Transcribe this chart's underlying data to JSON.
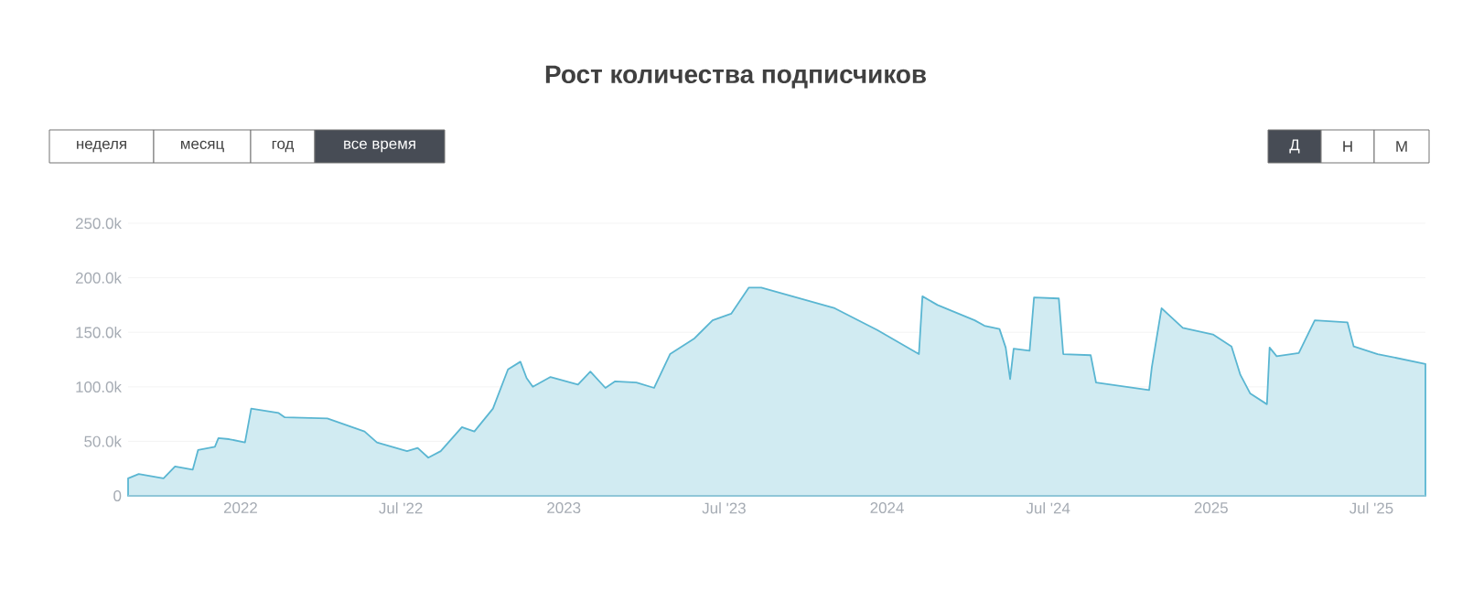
{
  "chart_data": {
    "type": "area",
    "title": "Рост количества подписчиков",
    "annotations": [
      "неделя",
      "месяц",
      "год",
      "все время",
      "Д",
      "Н",
      "М"
    ],
    "x": [
      "2021-08-27",
      "2021-09-08",
      "2021-10-06",
      "2021-10-19",
      "2021-11-08",
      "2021-11-14",
      "2021-12-03",
      "2021-12-07",
      "2021-12-19",
      "2022-01-06",
      "2022-01-13",
      "2022-02-13",
      "2022-02-20",
      "2022-04-09",
      "2022-05-21",
      "2022-06-04",
      "2022-07-08",
      "2022-07-20",
      "2022-08-01",
      "2022-08-15",
      "2022-09-08",
      "2022-09-22",
      "2022-10-13",
      "2022-10-30",
      "2022-11-13",
      "2022-11-20",
      "2022-11-27",
      "2022-12-17",
      "2023-01-17",
      "2023-01-31",
      "2023-02-17",
      "2023-02-28",
      "2023-03-24",
      "2023-04-13",
      "2023-05-01",
      "2023-05-28",
      "2023-06-18",
      "2023-07-09",
      "2023-07-29",
      "2023-08-12",
      "2023-11-03",
      "2023-12-21",
      "2024-02-06",
      "2024-02-10",
      "2024-02-27",
      "2024-04-09",
      "2024-04-20",
      "2024-05-07",
      "2024-05-14",
      "2024-05-19",
      "2024-05-23",
      "2024-06-10",
      "2024-06-15",
      "2024-07-13",
      "2024-07-18",
      "2024-08-18",
      "2024-08-24",
      "2024-10-23",
      "2024-10-26",
      "2024-11-06",
      "2024-11-30",
      "2025-01-03",
      "2025-01-24",
      "2025-02-03",
      "2025-02-14",
      "2025-03-05",
      "2025-03-08",
      "2025-03-16",
      "2025-04-10",
      "2025-04-28",
      "2025-06-04",
      "2025-06-11",
      "2025-07-08",
      "2025-08-31"
    ],
    "series": [
      {
        "color": "#5ab6d2",
        "values": [
          16000,
          20000,
          16000,
          27000,
          24000,
          42000,
          45000,
          53000,
          52000,
          49000,
          80000,
          76000,
          72000,
          71000,
          59000,
          49000,
          41000,
          44000,
          35000,
          41000,
          63000,
          59000,
          80000,
          116000,
          123000,
          108000,
          100000,
          109000,
          102000,
          114000,
          99000,
          105000,
          104000,
          99000,
          130000,
          144000,
          161000,
          167000,
          191000,
          191000,
          172000,
          152000,
          130000,
          183000,
          175000,
          161000,
          156000,
          153000,
          136000,
          107000,
          135000,
          133000,
          182000,
          181000,
          130000,
          129000,
          104000,
          97000,
          118000,
          172000,
          154000,
          148000,
          137000,
          111000,
          94000,
          84000,
          136000,
          128000,
          131000,
          161000,
          159000,
          137000,
          130000,
          121000
        ]
      }
    ],
    "xlim": [
      "2021-08-27",
      "2025-08-31"
    ],
    "xticks": [
      {
        "value": "2022-01-01",
        "label": "2022"
      },
      {
        "value": "2022-07-01",
        "label": "Jul '22"
      },
      {
        "value": "2023-01-01",
        "label": "2023"
      },
      {
        "value": "2023-07-01",
        "label": "Jul '23"
      },
      {
        "value": "2024-01-01",
        "label": "2024"
      },
      {
        "value": "2024-07-01",
        "label": "Jul '24"
      },
      {
        "value": "2025-01-01",
        "label": "2025"
      },
      {
        "value": "2025-07-01",
        "label": "Jul '25"
      }
    ],
    "ylim": [
      0,
      250000
    ],
    "yticks": [
      0,
      {
        "value": 50000,
        "label": "50.0k"
      },
      {
        "value": 100000,
        "label": "100.0k"
      },
      {
        "value": 150000,
        "label": "150.0k"
      },
      {
        "value": 200000,
        "label": "200.0k"
      },
      {
        "value": 250000,
        "label": "250.0k"
      }
    ],
    "grid": "y"
  }
}
